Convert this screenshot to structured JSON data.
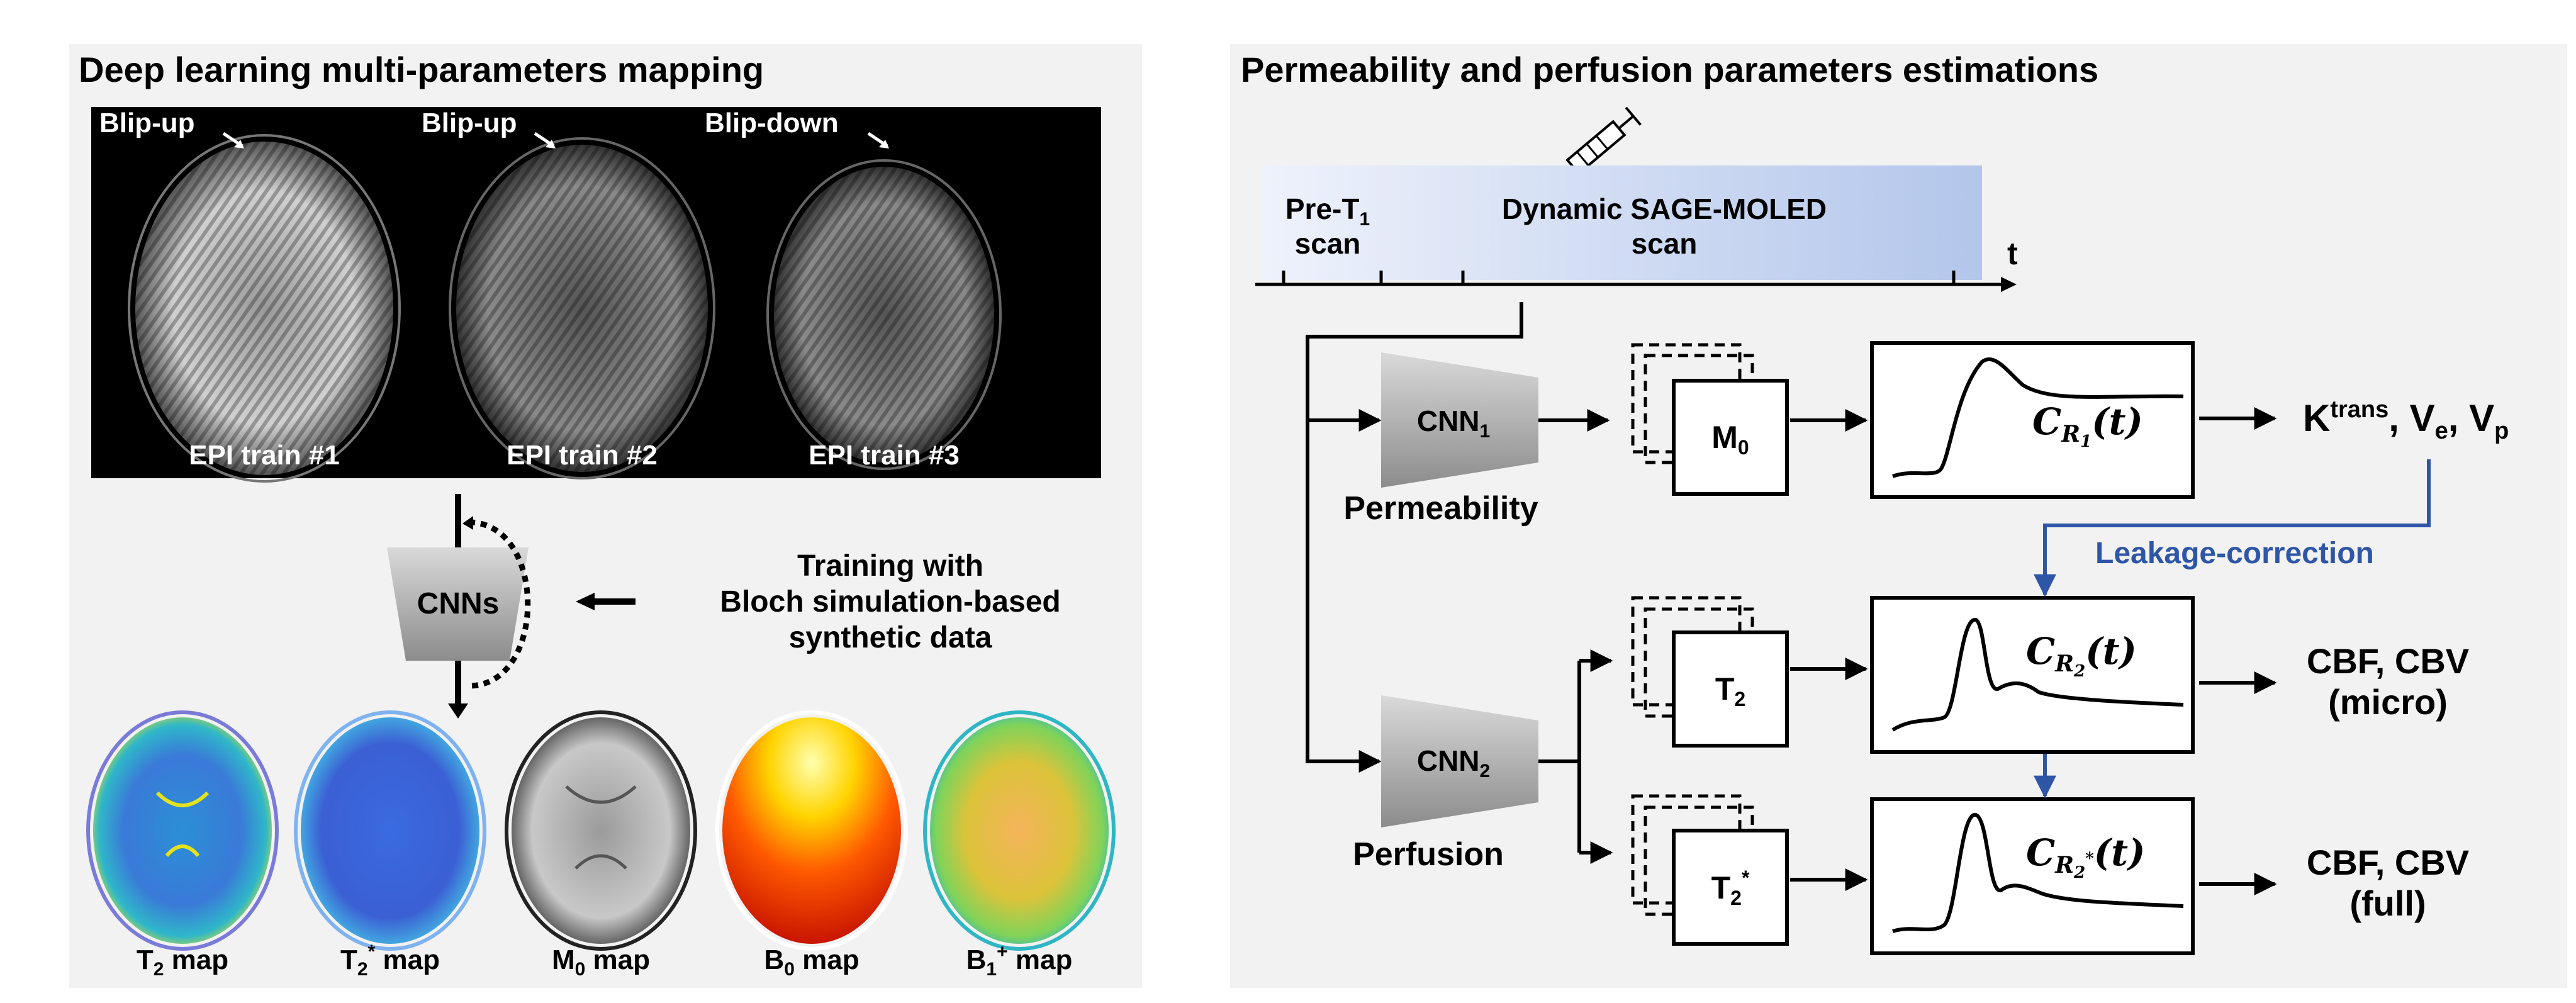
{
  "left": {
    "title": "Deep learning multi-parameters mapping",
    "epi_images": [
      {
        "blip": "Blip-up",
        "label": "EPI train #1"
      },
      {
        "blip": "Blip-up",
        "label": "EPI train #2"
      },
      {
        "blip": "Blip-down",
        "label": "EPI train #3"
      }
    ],
    "cnn_label": "CNNs",
    "training_text": [
      "Training with",
      "Bloch simulation-based",
      "synthetic data"
    ],
    "maps": [
      {
        "base": "T",
        "sub": "2",
        "sup": "",
        "suffix": " map"
      },
      {
        "base": "T",
        "sub": "2",
        "sup": "*",
        "suffix": " map"
      },
      {
        "base": "M",
        "sub": "0",
        "sup": "",
        "suffix": " map"
      },
      {
        "base": "B",
        "sub": "0",
        "sup": "",
        "suffix": " map"
      },
      {
        "base": "B",
        "sub": "1",
        "sup": "+",
        "suffix": " map"
      }
    ]
  },
  "right": {
    "title": "Permeability and perfusion parameters estimations",
    "timeline": {
      "pre_label_base": "Pre-T",
      "pre_label_sub": "1",
      "pre_label_line2": "scan",
      "dynamic_label_line1": "Dynamic SAGE-MOLED",
      "dynamic_label_line2": "scan",
      "axis_label": "t"
    },
    "permeability": {
      "cnn_base": "CNN",
      "cnn_sub": "1",
      "branch_label": "Permeability",
      "stack_base": "M",
      "stack_sub": "0",
      "curve_base": "C",
      "curve_sub": "R",
      "curve_subsub": "1",
      "curve_arg": "(t)",
      "output": {
        "k_base": "K",
        "k_sup": "trans",
        "rest": ", V",
        "e_sub": "e",
        "sep": ", V",
        "p_sub": "p"
      }
    },
    "leakage_label": "Leakage-correction",
    "perfusion": {
      "cnn_base": "CNN",
      "cnn_sub": "2",
      "branch_label": "Perfusion",
      "t2_stack_base": "T",
      "t2_stack_sub": "2",
      "t2s_stack_base": "T",
      "t2s_stack_sub": "2",
      "t2s_stack_sup": "*",
      "curve2_base": "C",
      "curve2_sub": "R",
      "curve2_subsub": "2",
      "curve2_arg": "(t)",
      "curve3_base": "C",
      "curve3_sub": "R",
      "curve3_subsub": "2",
      "curve3_subsup": "*",
      "curve3_arg": "(t)",
      "output_micro": [
        "CBF, CBV",
        "(micro)"
      ],
      "output_full": [
        "CBF, CBV",
        "(full)"
      ]
    },
    "colors": {
      "leakage_blue": "#2f56a6",
      "panel_bg": "#f2f2f2",
      "timeline_start": "#eef2fb",
      "timeline_end": "#b3c6eb"
    }
  }
}
